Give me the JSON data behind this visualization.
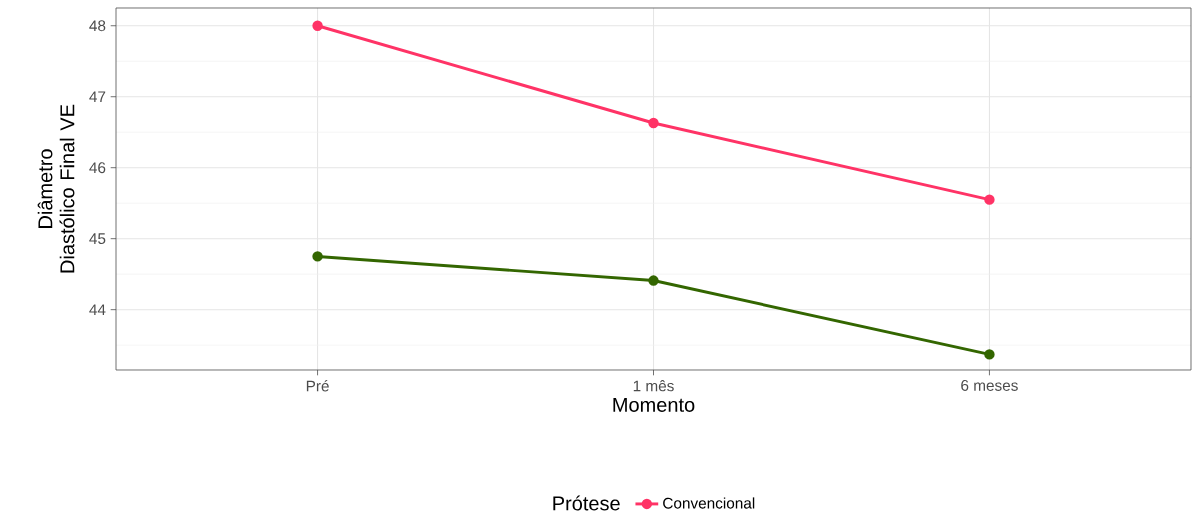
{
  "chart_data": {
    "type": "line",
    "xlabel": "Momento",
    "ylabel": "Diâmetro Diastólico Final VE",
    "legend_title": "Prótese",
    "categories": [
      "Pré",
      "1 mês",
      "6 meses"
    ],
    "series": [
      {
        "name": "Convencional",
        "color": "#ff3366",
        "values": [
          48.0,
          46.63,
          45.55
        ]
      },
      {
        "color": "#336600",
        "values": [
          44.75,
          44.41,
          43.37
        ]
      }
    ],
    "ylim": [
      43.15,
      48.25
    ],
    "yticks": [
      44,
      45,
      46,
      47,
      48
    ],
    "grid": true,
    "legend": "bottom",
    "marker": "circle",
    "line_style": "solid"
  }
}
